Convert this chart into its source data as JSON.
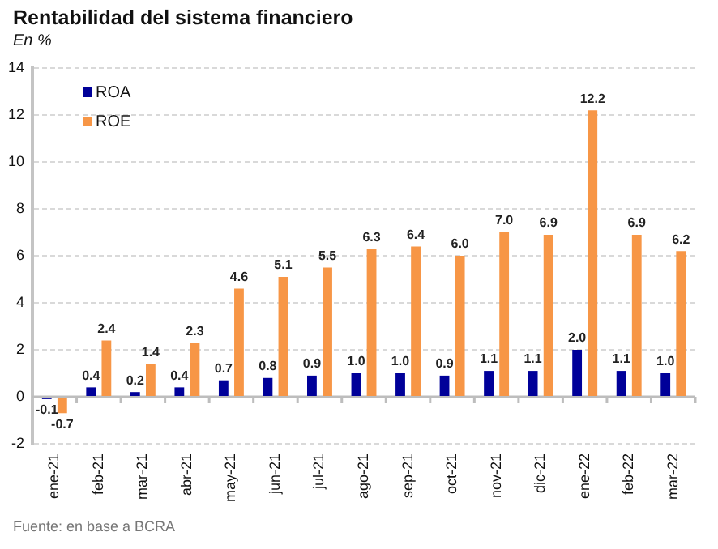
{
  "chart_data": {
    "type": "bar",
    "title": "Rentabilidad del sistema financiero",
    "subtitle": "En %",
    "annotations": [
      "Fuente: en base a BCRA"
    ],
    "categories": [
      "ene-21",
      "feb-21",
      "mar-21",
      "abr-21",
      "may-21",
      "jun-21",
      "jul-21",
      "ago-21",
      "sep-21",
      "oct-21",
      "nov-21",
      "dic-21",
      "ene-22",
      "feb-22",
      "mar-22"
    ],
    "series": [
      {
        "name": "ROA",
        "color": "#000099",
        "values": [
          -0.1,
          0.4,
          0.2,
          0.4,
          0.7,
          0.8,
          0.9,
          1.0,
          1.0,
          0.9,
          1.1,
          1.1,
          2.0,
          1.1,
          1.0
        ],
        "value_labels": [
          "-0.1",
          "0.4",
          "0.2",
          "0.4",
          "0.7",
          "0.8",
          "0.9",
          "1.0",
          "1.0",
          "0.9",
          "1.1",
          "1.1",
          "2.0",
          "1.1",
          "1.0"
        ]
      },
      {
        "name": "ROE",
        "color": "#f79646",
        "values": [
          -0.7,
          2.4,
          1.4,
          2.3,
          4.6,
          5.1,
          5.5,
          6.3,
          6.4,
          6.0,
          7.0,
          6.9,
          12.2,
          6.9,
          6.2
        ],
        "value_labels": [
          "-0.7",
          "2.4",
          "1.4",
          "2.3",
          "4.6",
          "5.1",
          "5.5",
          "6.3",
          "6.4",
          "6.0",
          "7.0",
          "6.9",
          "12.2",
          "6.9",
          "6.2"
        ]
      }
    ],
    "ylim": [
      -2,
      14
    ],
    "yticks": [
      -2,
      0,
      2,
      4,
      6,
      8,
      10,
      12,
      14
    ],
    "grid": "y",
    "legend": "top left"
  }
}
